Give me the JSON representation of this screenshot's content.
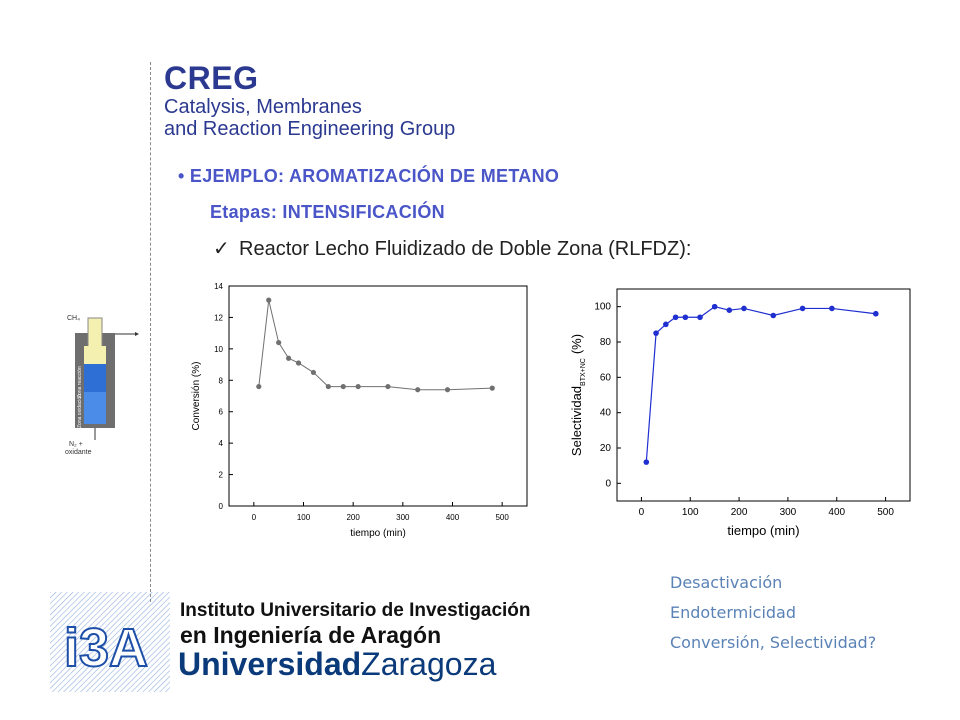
{
  "header": {
    "logo": "CREG",
    "subtitle_line1": "Catalysis, Membranes",
    "subtitle_line2": "and Reaction Engineering Group"
  },
  "content": {
    "bullet": "•",
    "heading": "EJEMPLO: AROMATIZACIÓN DE METANO",
    "stage": "Etapas:  INTENSIFICACIÓN",
    "check": "✓",
    "item": "Reactor Lecho Fluidizado de Doble Zona (RLFDZ):"
  },
  "reactor_diagram": {
    "top_label": "CH₄",
    "zone_upper": "Zona reacción",
    "zone_lower": "Zona oxidación",
    "bottom_label_1": "N₂ +",
    "bottom_label_2": "oxidante"
  },
  "notes": [
    "Desactivación",
    "Endotermicidad",
    "Conversión, Selectividad?"
  ],
  "footer": {
    "logo_text": "i3A",
    "institute_line1": "Instituto Universitario de Investigación",
    "institute_line2": "en Ingeniería de Aragón",
    "university_bold": "Universidad",
    "university_light": "Zaragoza"
  },
  "colors": {
    "brand": "#2b3990",
    "heading": "#4a55c8",
    "notes": "#5b82b6",
    "series_gray": "#707070",
    "series_blue": "#1f2fd0"
  },
  "chart_data": [
    {
      "type": "line",
      "xlabel": "tiempo (min)",
      "ylabel": "Conversión (%)",
      "xlim": [
        -50,
        550
      ],
      "ylim": [
        0,
        14
      ],
      "xticks": [
        0,
        100,
        200,
        300,
        400,
        500
      ],
      "yticks": [
        0,
        2,
        4,
        6,
        8,
        10,
        12,
        14
      ],
      "series": [
        {
          "x": [
            10,
            30,
            50,
            70,
            90,
            120,
            150,
            180,
            210,
            270,
            330,
            390,
            480
          ],
          "y": [
            7.6,
            13.1,
            10.4,
            9.4,
            9.1,
            8.5,
            7.6,
            7.6,
            7.6,
            7.6,
            7.4,
            7.4,
            7.5
          ]
        }
      ]
    },
    {
      "type": "line",
      "xlabel": "tiempo (min)",
      "ylabel": "Selectividad",
      "ylabel_sub": "BTX+NC",
      "ylabel_unit": "(%)",
      "xlim": [
        -50,
        550
      ],
      "ylim": [
        -10,
        110
      ],
      "xticks": [
        0,
        100,
        200,
        300,
        400,
        500
      ],
      "yticks": [
        0,
        20,
        40,
        60,
        80,
        100
      ],
      "series": [
        {
          "x": [
            10,
            30,
            50,
            70,
            90,
            120,
            150,
            180,
            210,
            270,
            330,
            390,
            480
          ],
          "y": [
            12,
            85,
            90,
            94,
            94,
            94,
            100,
            98,
            99,
            95,
            99,
            99,
            96
          ]
        }
      ]
    }
  ]
}
